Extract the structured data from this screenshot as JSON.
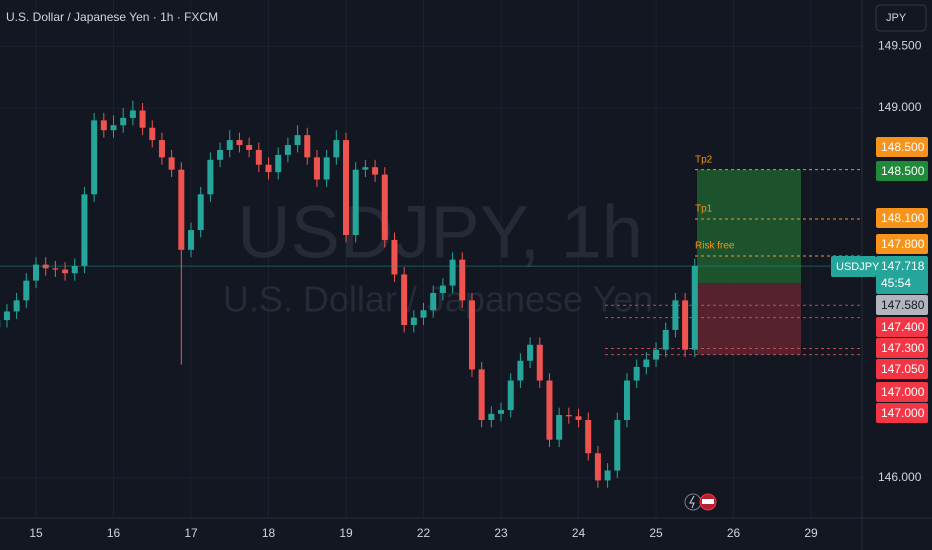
{
  "header": {
    "title": "U.S. Dollar / Japanese Yen · 1h · FXCM",
    "currency": "JPY"
  },
  "watermark": {
    "symbol": "USDJPY, 1h",
    "name": "U.S. Dollar / Japanese Yen"
  },
  "chart_data": {
    "type": "candlestick",
    "open": [
      147.22,
      147.28,
      147.35,
      147.44,
      147.6,
      147.73,
      147.7,
      147.69,
      147.66,
      147.72,
      148.3,
      148.9,
      148.82,
      148.86,
      148.92,
      148.98,
      148.84,
      148.74,
      148.6,
      148.5,
      147.85,
      148.01,
      148.3,
      148.58,
      148.66,
      148.74,
      148.7,
      148.66,
      148.54,
      148.48,
      148.62,
      148.7,
      148.78,
      148.6,
      148.42,
      148.6,
      148.74,
      147.97,
      148.5,
      148.52,
      148.46,
      147.93,
      147.65,
      147.24,
      147.3,
      147.36,
      147.5,
      147.56,
      147.77,
      147.44,
      146.88,
      146.47,
      146.52,
      146.55,
      146.79,
      146.95,
      147.08,
      146.79,
      146.31,
      146.51,
      146.5,
      146.47,
      146.2,
      145.98,
      146.06,
      146.47,
      146.79,
      146.9,
      146.96,
      147.04,
      147.2,
      147.44,
      147.04
    ],
    "high": [
      147.34,
      147.41,
      147.5,
      147.66,
      147.79,
      147.79,
      147.76,
      147.75,
      147.78,
      148.36,
      148.96,
      148.96,
      148.94,
      149.0,
      149.06,
      149.04,
      148.9,
      148.8,
      148.66,
      148.56,
      148.07,
      148.36,
      148.64,
      148.72,
      148.82,
      148.8,
      148.76,
      148.72,
      148.6,
      148.68,
      148.76,
      148.86,
      148.84,
      148.66,
      148.66,
      148.82,
      148.8,
      148.56,
      148.58,
      148.58,
      148.52,
      147.99,
      147.71,
      147.36,
      147.42,
      147.56,
      147.62,
      147.83,
      147.83,
      147.5,
      146.94,
      146.58,
      146.61,
      146.85,
      147.01,
      147.14,
      147.14,
      146.85,
      146.57,
      146.57,
      146.56,
      146.53,
      146.26,
      146.12,
      146.53,
      146.85,
      146.96,
      147.02,
      147.1,
      147.26,
      147.5,
      147.5,
      147.78
    ],
    "low": [
      147.16,
      147.22,
      147.29,
      147.38,
      147.54,
      147.64,
      147.63,
      147.6,
      147.6,
      147.66,
      148.24,
      148.76,
      148.76,
      148.8,
      148.86,
      148.78,
      148.68,
      148.54,
      148.44,
      146.92,
      147.79,
      147.95,
      148.24,
      148.52,
      148.6,
      148.64,
      148.6,
      148.48,
      148.42,
      148.42,
      148.56,
      148.64,
      148.54,
      148.36,
      148.36,
      148.54,
      147.91,
      147.91,
      148.44,
      148.4,
      147.87,
      147.59,
      147.18,
      147.18,
      147.24,
      147.3,
      147.44,
      147.5,
      147.38,
      146.82,
      146.41,
      146.41,
      146.46,
      146.49,
      146.73,
      146.89,
      146.73,
      146.25,
      146.25,
      146.44,
      146.41,
      146.14,
      145.92,
      145.92,
      146.0,
      146.41,
      146.73,
      146.84,
      146.9,
      146.98,
      147.14,
      146.98,
      146.98
    ],
    "close": [
      147.28,
      147.35,
      147.44,
      147.6,
      147.73,
      147.7,
      147.69,
      147.66,
      147.72,
      148.3,
      148.9,
      148.82,
      148.86,
      148.92,
      148.98,
      148.84,
      148.74,
      148.6,
      148.5,
      147.85,
      148.01,
      148.3,
      148.58,
      148.66,
      148.74,
      148.7,
      148.66,
      148.54,
      148.48,
      148.62,
      148.7,
      148.78,
      148.6,
      148.42,
      148.6,
      148.74,
      147.97,
      148.5,
      148.52,
      148.46,
      147.93,
      147.65,
      147.24,
      147.3,
      147.36,
      147.5,
      147.56,
      147.77,
      147.44,
      146.88,
      146.47,
      146.52,
      146.55,
      146.79,
      146.95,
      147.08,
      146.79,
      146.31,
      146.51,
      146.5,
      146.47,
      146.2,
      145.98,
      146.06,
      146.47,
      146.79,
      146.9,
      146.96,
      147.04,
      147.2,
      147.44,
      147.04,
      147.72
    ],
    "up_color": "#26a69a",
    "down_color": "#ef5350",
    "ylim": [
      145.675,
      149.876
    ],
    "yticks": [
      {
        "value": 146,
        "label": "146.000"
      },
      {
        "value": 149,
        "label": "149.000"
      },
      {
        "value": 149.5,
        "label": "149.500"
      }
    ],
    "xlim": [
      0.284,
      89.26
    ],
    "xticks": [
      {
        "value": 4,
        "label": "15"
      },
      {
        "value": 12,
        "label": "16"
      },
      {
        "value": 20,
        "label": "17"
      },
      {
        "value": 28,
        "label": "18"
      },
      {
        "value": 36,
        "label": "19"
      },
      {
        "value": 44,
        "label": "22"
      },
      {
        "value": 52,
        "label": "23"
      },
      {
        "value": 60,
        "label": "24"
      },
      {
        "value": 68,
        "label": "25"
      },
      {
        "value": 76,
        "label": "26"
      },
      {
        "value": 84,
        "label": "29"
      }
    ],
    "grid": true,
    "current_price": {
      "symbol": "USDJPY",
      "value": 147.718,
      "label": "147.718",
      "countdown": "45:54",
      "color": "#26a69a"
    },
    "levels": [
      {
        "name": "Tp2",
        "value": 148.5,
        "color": "#f7931a"
      },
      {
        "name": "Tp1",
        "value": 148.1,
        "color": "#f7931a"
      },
      {
        "name": "Risk free",
        "value": 147.8,
        "color": "#f7931a"
      }
    ],
    "position": {
      "target": 148.5,
      "entry": 147.58,
      "stop": 147.0,
      "target_color": "#1f5a2e",
      "stop_color": "#5e2330"
    },
    "marker_levels": [
      147.4,
      147.3,
      147.05,
      147.0
    ],
    "price_tags": [
      {
        "value": 148.5,
        "label": "148.500",
        "color": "#f7931a"
      },
      {
        "value": 148.5,
        "label": "148.500",
        "color": "#1e8a3a"
      },
      {
        "value": 148.1,
        "label": "148.100",
        "color": "#f7931a"
      },
      {
        "value": 147.8,
        "label": "147.800",
        "color": "#f7931a"
      },
      {
        "value": 147.58,
        "label": "147.580",
        "color": "#b2b5be"
      },
      {
        "value": 147.4,
        "label": "147.400",
        "color": "#f23645"
      },
      {
        "value": 147.3,
        "label": "147.300",
        "color": "#f23645"
      },
      {
        "value": 147.05,
        "label": "147.050",
        "color": "#f23645"
      },
      {
        "value": 147.0,
        "label": "147.000",
        "color": "#f23645"
      },
      {
        "value": 147.0,
        "label": "147.000",
        "color": "#f23645"
      }
    ]
  }
}
